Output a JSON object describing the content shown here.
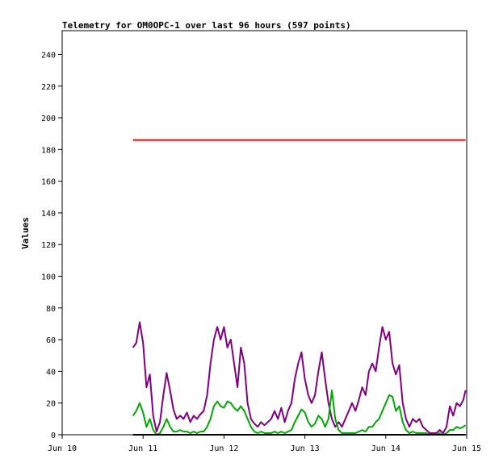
{
  "chart_data": {
    "type": "line",
    "title": "Telemetry for OM0OPC-1 over last 96 hours (597 points)",
    "xlabel": "",
    "ylabel": "Values",
    "x_ticks": [
      "Jun 10",
      "Jun 11",
      "Jun 12",
      "Jun 13",
      "Jun 14",
      "Jun 15"
    ],
    "y_ticks": [
      0,
      20,
      40,
      60,
      80,
      100,
      120,
      140,
      160,
      180,
      200,
      220,
      240
    ],
    "xlim": [
      "2020-06-10T00:00",
      "2020-06-15T00:00"
    ],
    "ylim": [
      0,
      255
    ],
    "grid": false,
    "legend": "none",
    "series": [
      {
        "color": "#ff0000",
        "points": [
          [
            "2020-06-10T21:00",
            186
          ],
          [
            "2020-06-14T23:40",
            186
          ]
        ]
      },
      {
        "color": "#800080",
        "points": [
          [
            "2020-06-10T21:00",
            55
          ],
          [
            "2020-06-10T22:00",
            58
          ],
          [
            "2020-06-10T23:00",
            71
          ],
          [
            "2020-06-11T00:00",
            58
          ],
          [
            "2020-06-11T01:00",
            30
          ],
          [
            "2020-06-11T02:00",
            38
          ],
          [
            "2020-06-11T03:00",
            12
          ],
          [
            "2020-06-11T04:00",
            2
          ],
          [
            "2020-06-11T05:00",
            8
          ],
          [
            "2020-06-11T06:00",
            25
          ],
          [
            "2020-06-11T07:00",
            39
          ],
          [
            "2020-06-11T08:00",
            28
          ],
          [
            "2020-06-11T09:00",
            16
          ],
          [
            "2020-06-11T10:00",
            10
          ],
          [
            "2020-06-11T11:00",
            12
          ],
          [
            "2020-06-11T12:00",
            10
          ],
          [
            "2020-06-11T13:00",
            14
          ],
          [
            "2020-06-11T14:00",
            8
          ],
          [
            "2020-06-11T15:00",
            12
          ],
          [
            "2020-06-11T16:00",
            10
          ],
          [
            "2020-06-11T17:00",
            13
          ],
          [
            "2020-06-11T18:00",
            15
          ],
          [
            "2020-06-11T19:00",
            25
          ],
          [
            "2020-06-11T20:00",
            45
          ],
          [
            "2020-06-11T21:00",
            60
          ],
          [
            "2020-06-11T22:00",
            68
          ],
          [
            "2020-06-11T23:00",
            60
          ],
          [
            "2020-06-12T00:00",
            68
          ],
          [
            "2020-06-12T01:00",
            55
          ],
          [
            "2020-06-12T02:00",
            60
          ],
          [
            "2020-06-12T03:00",
            45
          ],
          [
            "2020-06-12T04:00",
            30
          ],
          [
            "2020-06-12T05:00",
            55
          ],
          [
            "2020-06-12T06:00",
            45
          ],
          [
            "2020-06-12T07:00",
            20
          ],
          [
            "2020-06-12T08:00",
            10
          ],
          [
            "2020-06-12T09:00",
            7
          ],
          [
            "2020-06-12T10:00",
            5
          ],
          [
            "2020-06-12T11:00",
            8
          ],
          [
            "2020-06-12T12:00",
            6
          ],
          [
            "2020-06-12T13:00",
            8
          ],
          [
            "2020-06-12T14:00",
            10
          ],
          [
            "2020-06-12T15:00",
            15
          ],
          [
            "2020-06-12T16:00",
            10
          ],
          [
            "2020-06-12T17:00",
            17
          ],
          [
            "2020-06-12T18:00",
            8
          ],
          [
            "2020-06-12T19:00",
            15
          ],
          [
            "2020-06-12T20:00",
            20
          ],
          [
            "2020-06-12T21:00",
            35
          ],
          [
            "2020-06-12T22:00",
            45
          ],
          [
            "2020-06-12T23:00",
            52
          ],
          [
            "2020-06-13T00:00",
            35
          ],
          [
            "2020-06-13T01:00",
            25
          ],
          [
            "2020-06-13T02:00",
            20
          ],
          [
            "2020-06-13T03:00",
            25
          ],
          [
            "2020-06-13T04:00",
            40
          ],
          [
            "2020-06-13T05:00",
            52
          ],
          [
            "2020-06-13T06:00",
            35
          ],
          [
            "2020-06-13T07:00",
            20
          ],
          [
            "2020-06-13T08:00",
            10
          ],
          [
            "2020-06-13T09:00",
            5
          ],
          [
            "2020-06-13T10:00",
            8
          ],
          [
            "2020-06-13T11:00",
            5
          ],
          [
            "2020-06-13T12:00",
            10
          ],
          [
            "2020-06-13T13:00",
            15
          ],
          [
            "2020-06-13T14:00",
            20
          ],
          [
            "2020-06-13T15:00",
            15
          ],
          [
            "2020-06-13T16:00",
            22
          ],
          [
            "2020-06-13T17:00",
            30
          ],
          [
            "2020-06-13T18:00",
            25
          ],
          [
            "2020-06-13T19:00",
            40
          ],
          [
            "2020-06-13T20:00",
            45
          ],
          [
            "2020-06-13T21:00",
            40
          ],
          [
            "2020-06-13T22:00",
            55
          ],
          [
            "2020-06-13T23:00",
            68
          ],
          [
            "2020-06-14T00:00",
            60
          ],
          [
            "2020-06-14T01:00",
            65
          ],
          [
            "2020-06-14T02:00",
            45
          ],
          [
            "2020-06-14T03:00",
            38
          ],
          [
            "2020-06-14T04:00",
            44
          ],
          [
            "2020-06-14T05:00",
            20
          ],
          [
            "2020-06-14T06:00",
            10
          ],
          [
            "2020-06-14T07:00",
            5
          ],
          [
            "2020-06-14T08:00",
            10
          ],
          [
            "2020-06-14T09:00",
            8
          ],
          [
            "2020-06-14T10:00",
            10
          ],
          [
            "2020-06-14T11:00",
            5
          ],
          [
            "2020-06-14T12:00",
            3
          ],
          [
            "2020-06-14T13:00",
            1
          ],
          [
            "2020-06-14T14:00",
            1
          ],
          [
            "2020-06-14T15:00",
            1
          ],
          [
            "2020-06-14T16:00",
            3
          ],
          [
            "2020-06-14T17:00",
            1
          ],
          [
            "2020-06-14T18:00",
            5
          ],
          [
            "2020-06-14T19:00",
            18
          ],
          [
            "2020-06-14T20:00",
            12
          ],
          [
            "2020-06-14T21:00",
            20
          ],
          [
            "2020-06-14T22:00",
            18
          ],
          [
            "2020-06-14T23:00",
            22
          ],
          [
            "2020-06-14T23:40",
            28
          ]
        ]
      },
      {
        "color": "#00aa00",
        "points": [
          [
            "2020-06-10T21:00",
            12
          ],
          [
            "2020-06-10T22:00",
            15
          ],
          [
            "2020-06-10T23:00",
            20
          ],
          [
            "2020-06-11T00:00",
            14
          ],
          [
            "2020-06-11T01:00",
            5
          ],
          [
            "2020-06-11T02:00",
            10
          ],
          [
            "2020-06-11T03:00",
            3
          ],
          [
            "2020-06-11T04:00",
            0
          ],
          [
            "2020-06-11T05:00",
            1
          ],
          [
            "2020-06-11T06:00",
            5
          ],
          [
            "2020-06-11T07:00",
            10
          ],
          [
            "2020-06-11T08:00",
            5
          ],
          [
            "2020-06-11T09:00",
            2
          ],
          [
            "2020-06-11T10:00",
            2
          ],
          [
            "2020-06-11T11:00",
            3
          ],
          [
            "2020-06-11T12:00",
            2
          ],
          [
            "2020-06-11T13:00",
            2
          ],
          [
            "2020-06-11T14:00",
            1
          ],
          [
            "2020-06-11T15:00",
            2
          ],
          [
            "2020-06-11T16:00",
            1
          ],
          [
            "2020-06-11T17:00",
            2
          ],
          [
            "2020-06-11T18:00",
            2
          ],
          [
            "2020-06-11T19:00",
            5
          ],
          [
            "2020-06-11T20:00",
            10
          ],
          [
            "2020-06-11T21:00",
            18
          ],
          [
            "2020-06-11T22:00",
            21
          ],
          [
            "2020-06-11T23:00",
            18
          ],
          [
            "2020-06-12T00:00",
            17
          ],
          [
            "2020-06-12T01:00",
            21
          ],
          [
            "2020-06-12T02:00",
            20
          ],
          [
            "2020-06-12T03:00",
            17
          ],
          [
            "2020-06-12T04:00",
            15
          ],
          [
            "2020-06-12T05:00",
            18
          ],
          [
            "2020-06-12T06:00",
            15
          ],
          [
            "2020-06-12T07:00",
            10
          ],
          [
            "2020-06-12T08:00",
            5
          ],
          [
            "2020-06-12T09:00",
            2
          ],
          [
            "2020-06-12T10:00",
            1
          ],
          [
            "2020-06-12T11:00",
            2
          ],
          [
            "2020-06-12T12:00",
            1
          ],
          [
            "2020-06-12T13:00",
            1
          ],
          [
            "2020-06-12T14:00",
            1
          ],
          [
            "2020-06-12T15:00",
            2
          ],
          [
            "2020-06-12T16:00",
            1
          ],
          [
            "2020-06-12T17:00",
            2
          ],
          [
            "2020-06-12T18:00",
            1
          ],
          [
            "2020-06-12T19:00",
            2
          ],
          [
            "2020-06-12T20:00",
            3
          ],
          [
            "2020-06-12T21:00",
            8
          ],
          [
            "2020-06-12T22:00",
            12
          ],
          [
            "2020-06-12T23:00",
            16
          ],
          [
            "2020-06-13T00:00",
            14
          ],
          [
            "2020-06-13T01:00",
            8
          ],
          [
            "2020-06-13T02:00",
            5
          ],
          [
            "2020-06-13T03:00",
            7
          ],
          [
            "2020-06-13T04:00",
            12
          ],
          [
            "2020-06-13T05:00",
            10
          ],
          [
            "2020-06-13T06:00",
            5
          ],
          [
            "2020-06-13T07:00",
            10
          ],
          [
            "2020-06-13T08:00",
            28
          ],
          [
            "2020-06-13T09:00",
            10
          ],
          [
            "2020-06-13T10:00",
            3
          ],
          [
            "2020-06-13T11:00",
            1
          ],
          [
            "2020-06-13T12:00",
            1
          ],
          [
            "2020-06-13T13:00",
            1
          ],
          [
            "2020-06-13T14:00",
            1
          ],
          [
            "2020-06-13T15:00",
            1
          ],
          [
            "2020-06-13T16:00",
            2
          ],
          [
            "2020-06-13T17:00",
            3
          ],
          [
            "2020-06-13T18:00",
            2
          ],
          [
            "2020-06-13T19:00",
            5
          ],
          [
            "2020-06-13T20:00",
            5
          ],
          [
            "2020-06-13T21:00",
            8
          ],
          [
            "2020-06-13T22:00",
            10
          ],
          [
            "2020-06-13T23:00",
            15
          ],
          [
            "2020-06-14T00:00",
            20
          ],
          [
            "2020-06-14T01:00",
            25
          ],
          [
            "2020-06-14T02:00",
            24
          ],
          [
            "2020-06-14T03:00",
            15
          ],
          [
            "2020-06-14T04:00",
            18
          ],
          [
            "2020-06-14T05:00",
            8
          ],
          [
            "2020-06-14T06:00",
            3
          ],
          [
            "2020-06-14T07:00",
            1
          ],
          [
            "2020-06-14T08:00",
            2
          ],
          [
            "2020-06-14T09:00",
            1
          ],
          [
            "2020-06-14T10:00",
            1
          ],
          [
            "2020-06-14T11:00",
            1
          ],
          [
            "2020-06-14T12:00",
            1
          ],
          [
            "2020-06-14T13:00",
            0
          ],
          [
            "2020-06-14T14:00",
            0
          ],
          [
            "2020-06-14T15:00",
            0
          ],
          [
            "2020-06-14T16:00",
            1
          ],
          [
            "2020-06-14T17:00",
            0
          ],
          [
            "2020-06-14T18:00",
            1
          ],
          [
            "2020-06-14T19:00",
            3
          ],
          [
            "2020-06-14T20:00",
            3
          ],
          [
            "2020-06-14T21:00",
            5
          ],
          [
            "2020-06-14T22:00",
            4
          ],
          [
            "2020-06-14T23:00",
            5
          ],
          [
            "2020-06-14T23:40",
            6
          ]
        ]
      },
      {
        "color": "#000000",
        "points": [
          [
            "2020-06-10T21:00",
            0
          ],
          [
            "2020-06-14T23:40",
            0
          ]
        ]
      }
    ]
  }
}
